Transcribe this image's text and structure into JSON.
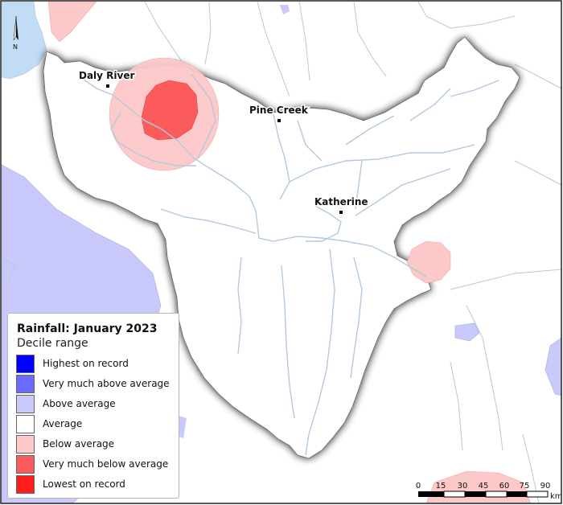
{
  "map": {
    "title": "Rainfall: January 2023",
    "subtitle": "Decile range",
    "north_label": "N",
    "towns": [
      {
        "name": "Daly River"
      },
      {
        "name": "Pine Creek"
      },
      {
        "name": "Katherine"
      }
    ],
    "legend": {
      "items": [
        {
          "label": "Highest on record",
          "color": "#0000ff"
        },
        {
          "label": "Very much above average",
          "color": "#6b6bff"
        },
        {
          "label": "Above average",
          "color": "#c9c9fb"
        },
        {
          "label": "Average",
          "color": "#ffffff"
        },
        {
          "label": "Below average",
          "color": "#fcc8c8"
        },
        {
          "label": "Very much below average",
          "color": "#fb5b5b"
        },
        {
          "label": "Lowest on record",
          "color": "#fe1d1d"
        }
      ]
    },
    "scale_bar": {
      "ticks": [
        "0",
        "15",
        "30",
        "45",
        "60",
        "75",
        "90"
      ],
      "unit": "km"
    },
    "colors": {
      "water": "#c3dcf5",
      "river": "#b4c9de",
      "catchment_shadow": "#555555"
    }
  }
}
